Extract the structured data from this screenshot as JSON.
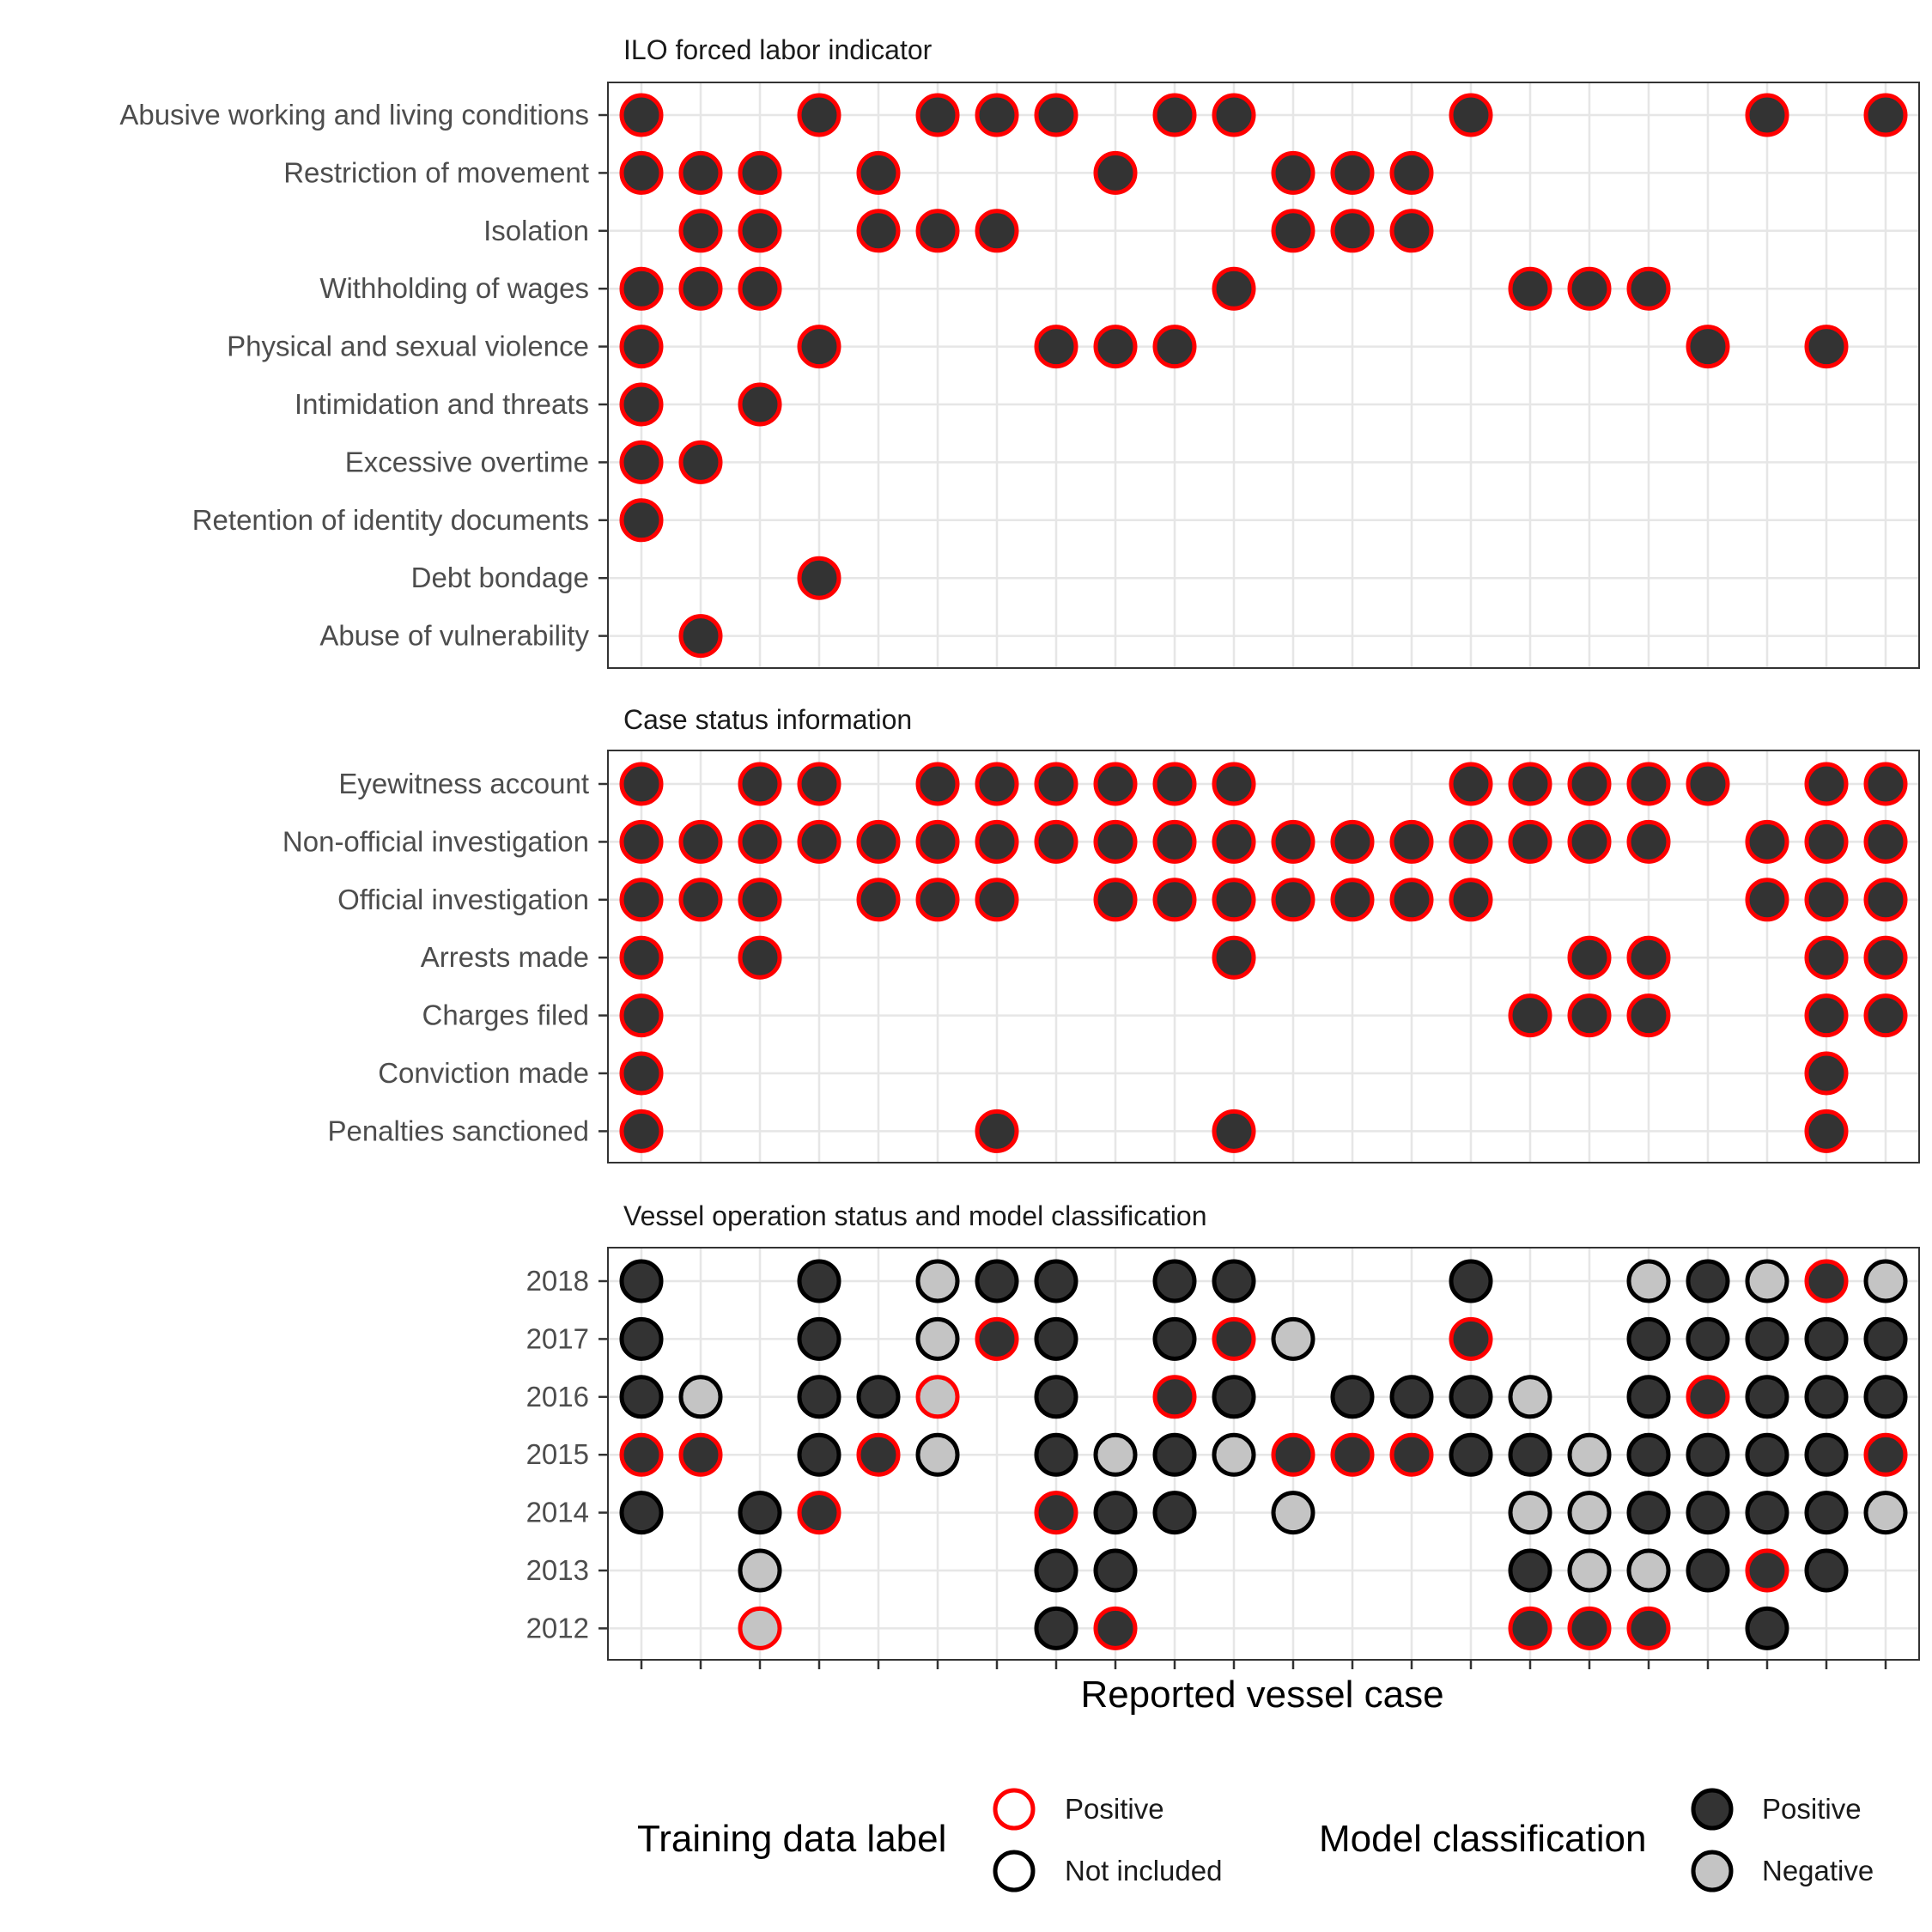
{
  "chart_data": {
    "type": "scatter",
    "xlabel": "Reported vessel case",
    "n_cases": 22,
    "colors": {
      "training_positive": "#ff0000",
      "training_not_included": "#000000",
      "model_positive": "#333333",
      "model_negative": "#c4c4c4",
      "grid": "#e6e6e6"
    },
    "panels": [
      {
        "title": "ILO forced labor indicator",
        "rows": [
          {
            "label": "Abusive working and living conditions",
            "cases": [
              1,
              4,
              6,
              7,
              8,
              10,
              11,
              15,
              20,
              22
            ]
          },
          {
            "label": "Restriction of movement",
            "cases": [
              1,
              2,
              3,
              5,
              9,
              12,
              13,
              14
            ]
          },
          {
            "label": "Isolation",
            "cases": [
              2,
              3,
              5,
              6,
              7,
              12,
              13,
              14
            ]
          },
          {
            "label": "Withholding of wages",
            "cases": [
              1,
              2,
              3,
              11,
              16,
              17,
              18
            ]
          },
          {
            "label": "Physical and sexual violence",
            "cases": [
              1,
              4,
              8,
              9,
              10,
              19,
              21
            ]
          },
          {
            "label": "Intimidation and threats",
            "cases": [
              1,
              3
            ]
          },
          {
            "label": "Excessive overtime",
            "cases": [
              1,
              2
            ]
          },
          {
            "label": "Retention of identity documents",
            "cases": [
              1
            ]
          },
          {
            "label": "Debt bondage",
            "cases": [
              4
            ]
          },
          {
            "label": "Abuse of vulnerability",
            "cases": [
              2
            ]
          }
        ]
      },
      {
        "title": "Case status information",
        "rows": [
          {
            "label": "Eyewitness account",
            "cases": [
              1,
              3,
              4,
              6,
              7,
              8,
              9,
              10,
              11,
              15,
              16,
              17,
              18,
              19,
              21,
              22
            ]
          },
          {
            "label": "Non-official investigation",
            "cases": [
              1,
              2,
              3,
              4,
              5,
              6,
              7,
              8,
              9,
              10,
              11,
              12,
              13,
              14,
              15,
              16,
              17,
              18,
              20,
              21,
              22
            ]
          },
          {
            "label": "Official investigation",
            "cases": [
              1,
              2,
              3,
              5,
              6,
              7,
              9,
              10,
              11,
              12,
              13,
              14,
              15,
              20,
              21,
              22
            ]
          },
          {
            "label": "Arrests made",
            "cases": [
              1,
              3,
              11,
              17,
              18,
              21,
              22
            ]
          },
          {
            "label": "Charges filed",
            "cases": [
              1,
              16,
              17,
              18,
              21,
              22
            ]
          },
          {
            "label": "Conviction made",
            "cases": [
              1,
              21
            ]
          },
          {
            "label": "Penalties sanctioned",
            "cases": [
              1,
              7,
              11,
              21
            ]
          }
        ]
      },
      {
        "title": "Vessel operation status and model classification",
        "rows": [
          {
            "label": "2018",
            "points": [
              [
                1,
                "N",
                "P"
              ],
              [
                4,
                "N",
                "P"
              ],
              [
                6,
                "N",
                "N"
              ],
              [
                7,
                "N",
                "P"
              ],
              [
                8,
                "N",
                "P"
              ],
              [
                10,
                "N",
                "P"
              ],
              [
                11,
                "N",
                "P"
              ],
              [
                15,
                "N",
                "P"
              ],
              [
                18,
                "N",
                "N"
              ],
              [
                19,
                "N",
                "P"
              ],
              [
                20,
                "N",
                "N"
              ],
              [
                21,
                "T",
                "P"
              ],
              [
                22,
                "N",
                "N"
              ]
            ]
          },
          {
            "label": "2017",
            "points": [
              [
                1,
                "N",
                "P"
              ],
              [
                4,
                "N",
                "P"
              ],
              [
                6,
                "N",
                "N"
              ],
              [
                7,
                "T",
                "P"
              ],
              [
                8,
                "N",
                "P"
              ],
              [
                10,
                "N",
                "P"
              ],
              [
                11,
                "T",
                "P"
              ],
              [
                12,
                "N",
                "N"
              ],
              [
                15,
                "T",
                "P"
              ],
              [
                18,
                "N",
                "P"
              ],
              [
                19,
                "N",
                "P"
              ],
              [
                20,
                "N",
                "P"
              ],
              [
                21,
                "N",
                "P"
              ],
              [
                22,
                "N",
                "P"
              ]
            ]
          },
          {
            "label": "2016",
            "points": [
              [
                1,
                "N",
                "P"
              ],
              [
                2,
                "N",
                "N"
              ],
              [
                4,
                "N",
                "P"
              ],
              [
                5,
                "N",
                "P"
              ],
              [
                6,
                "T",
                "N"
              ],
              [
                8,
                "N",
                "P"
              ],
              [
                10,
                "T",
                "P"
              ],
              [
                11,
                "N",
                "P"
              ],
              [
                13,
                "N",
                "P"
              ],
              [
                14,
                "N",
                "P"
              ],
              [
                15,
                "N",
                "P"
              ],
              [
                16,
                "N",
                "N"
              ],
              [
                18,
                "N",
                "P"
              ],
              [
                19,
                "T",
                "P"
              ],
              [
                20,
                "N",
                "P"
              ],
              [
                21,
                "N",
                "P"
              ],
              [
                22,
                "N",
                "P"
              ]
            ]
          },
          {
            "label": "2015",
            "points": [
              [
                1,
                "T",
                "P"
              ],
              [
                2,
                "T",
                "P"
              ],
              [
                4,
                "N",
                "P"
              ],
              [
                5,
                "T",
                "P"
              ],
              [
                6,
                "N",
                "N"
              ],
              [
                8,
                "N",
                "P"
              ],
              [
                9,
                "N",
                "N"
              ],
              [
                10,
                "N",
                "P"
              ],
              [
                11,
                "N",
                "N"
              ],
              [
                12,
                "T",
                "P"
              ],
              [
                13,
                "T",
                "P"
              ],
              [
                14,
                "T",
                "P"
              ],
              [
                15,
                "N",
                "P"
              ],
              [
                16,
                "N",
                "P"
              ],
              [
                17,
                "N",
                "N"
              ],
              [
                18,
                "N",
                "P"
              ],
              [
                19,
                "N",
                "P"
              ],
              [
                20,
                "N",
                "P"
              ],
              [
                21,
                "N",
                "P"
              ],
              [
                22,
                "T",
                "P"
              ]
            ]
          },
          {
            "label": "2014",
            "points": [
              [
                1,
                "N",
                "P"
              ],
              [
                3,
                "N",
                "P"
              ],
              [
                4,
                "T",
                "P"
              ],
              [
                8,
                "T",
                "P"
              ],
              [
                9,
                "N",
                "P"
              ],
              [
                10,
                "N",
                "P"
              ],
              [
                12,
                "N",
                "N"
              ],
              [
                16,
                "N",
                "N"
              ],
              [
                17,
                "N",
                "N"
              ],
              [
                18,
                "N",
                "P"
              ],
              [
                19,
                "N",
                "P"
              ],
              [
                20,
                "N",
                "P"
              ],
              [
                21,
                "N",
                "P"
              ],
              [
                22,
                "N",
                "N"
              ]
            ]
          },
          {
            "label": "2013",
            "points": [
              [
                3,
                "N",
                "N"
              ],
              [
                8,
                "N",
                "P"
              ],
              [
                9,
                "N",
                "P"
              ],
              [
                16,
                "N",
                "P"
              ],
              [
                17,
                "N",
                "N"
              ],
              [
                18,
                "N",
                "N"
              ],
              [
                19,
                "N",
                "P"
              ],
              [
                20,
                "T",
                "P"
              ],
              [
                21,
                "N",
                "P"
              ]
            ]
          },
          {
            "label": "2012",
            "points": [
              [
                3,
                "T",
                "N"
              ],
              [
                8,
                "N",
                "P"
              ],
              [
                9,
                "T",
                "P"
              ],
              [
                16,
                "T",
                "P"
              ],
              [
                17,
                "T",
                "P"
              ],
              [
                18,
                "T",
                "P"
              ],
              [
                20,
                "N",
                "P"
              ]
            ]
          }
        ]
      }
    ],
    "legend": {
      "training": {
        "title": "Training data label",
        "items": [
          {
            "key": "T",
            "label": "Positive"
          },
          {
            "key": "N",
            "label": "Not included"
          }
        ]
      },
      "model": {
        "title": "Model classification",
        "items": [
          {
            "key": "P",
            "label": "Positive"
          },
          {
            "key": "N",
            "label": "Negative"
          }
        ]
      },
      "position": "bottom"
    }
  }
}
